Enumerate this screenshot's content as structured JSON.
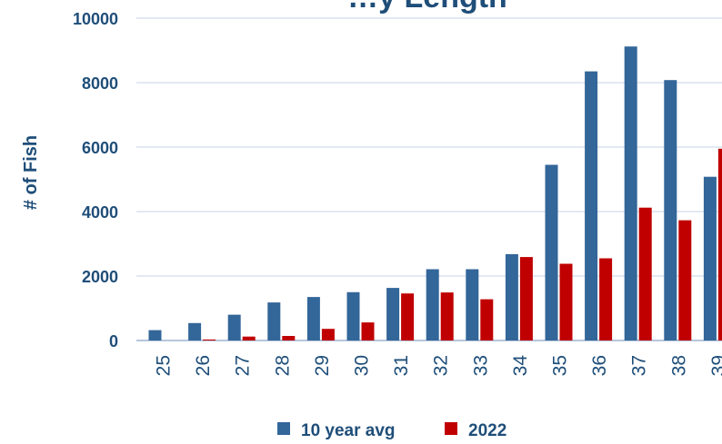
{
  "chart_data": {
    "type": "bar",
    "title": "…y Length",
    "ylabel": "# of Fish",
    "xlabel": "",
    "categories": [
      "25",
      "26",
      "27",
      "28",
      "29",
      "30",
      "31",
      "32",
      "33",
      "34",
      "35",
      "36",
      "37",
      "38",
      "39"
    ],
    "series": [
      {
        "name": "10 year avg",
        "color": "#336699",
        "values": [
          320,
          540,
          800,
          1180,
          1350,
          1500,
          1630,
          2210,
          2210,
          2680,
          5450,
          8350,
          9120,
          8080,
          5080
        ]
      },
      {
        "name": "2022",
        "color": "#c00000",
        "values": [
          0,
          30,
          120,
          140,
          360,
          560,
          1460,
          1490,
          1280,
          2590,
          2380,
          2550,
          4120,
          3730,
          5950
        ]
      }
    ],
    "yticks": [
      "0",
      "2000",
      "4000",
      "6000",
      "8000",
      "10000"
    ],
    "ylim": [
      0,
      10000
    ],
    "grid": true,
    "legend": "bottom"
  }
}
